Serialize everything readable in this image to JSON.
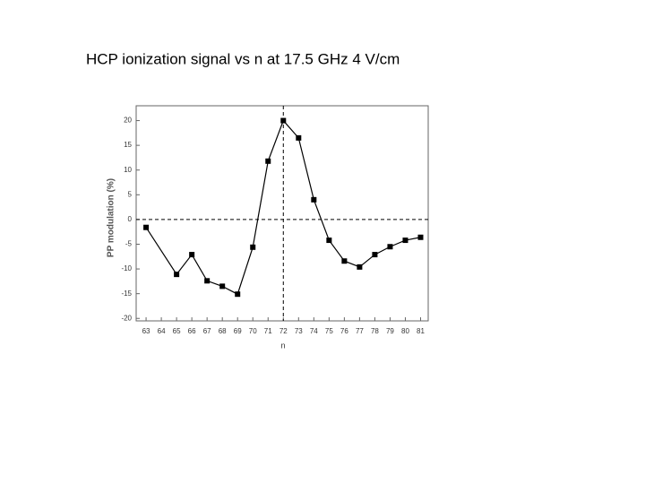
{
  "chart_data": {
    "type": "line",
    "title": "HCP ionization signal vs n at 17.5 GHz 4 V/cm",
    "x_label": "n",
    "y_label": "PP modulation (%)",
    "x": [
      63,
      65,
      66,
      67,
      68,
      69,
      70,
      71,
      72,
      73,
      74,
      75,
      76,
      77,
      78,
      79,
      80,
      81
    ],
    "series": [
      {
        "name": "PP modulation",
        "color": "#000000",
        "values": [
          -1.6,
          -11.1,
          -7.1,
          -12.4,
          -13.5,
          -15.1,
          -5.6,
          11.8,
          20,
          16.5,
          4,
          -4.2,
          -8.4,
          -9.6,
          -7.1,
          -5.5,
          -4.2,
          -3.6
        ]
      }
    ],
    "xlim": [
      62.35,
      81.5
    ],
    "ylim": [
      -20.5,
      23
    ],
    "xticks": [
      63,
      64,
      65,
      66,
      67,
      68,
      69,
      70,
      71,
      72,
      73,
      74,
      75,
      76,
      77,
      78,
      79,
      80,
      81
    ],
    "yticks": [
      -20,
      -15,
      -10,
      -5,
      0,
      5,
      10,
      15,
      20
    ],
    "hlines": [
      0
    ],
    "vlines": [
      72
    ]
  }
}
